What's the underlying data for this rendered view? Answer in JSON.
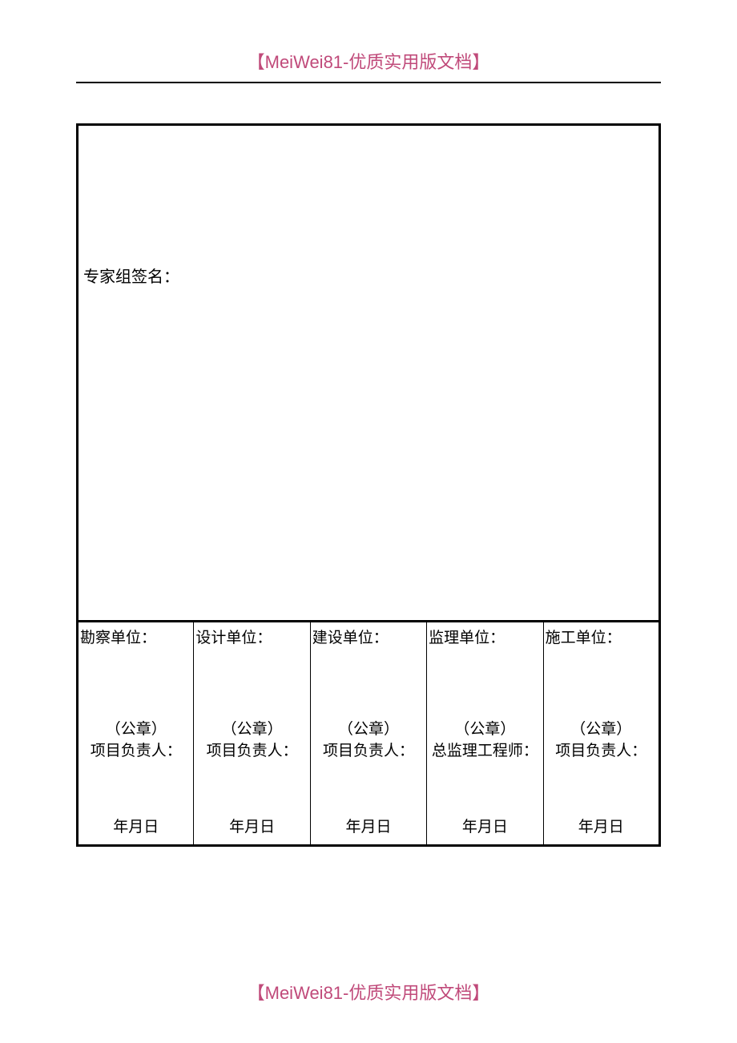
{
  "header": {
    "text": "【MeiWei81-优质实用版文档】",
    "color": "#c04a7a",
    "fontsize": 22
  },
  "footer": {
    "text": "【MeiWei81-优质实用版文档】",
    "color": "#c04a7a",
    "fontsize": 22
  },
  "table": {
    "type": "table",
    "border_color": "#000000",
    "outer_border_width": 3,
    "inner_border_width": 1,
    "background_color": "#ffffff",
    "expert_label": "专家组签名：",
    "columns": [
      {
        "unit": "勘察单位：",
        "seal": "（公章）",
        "responsible": "项目负责人：",
        "date": "年月日"
      },
      {
        "unit": "设计单位：",
        "seal": "（公章）",
        "responsible": "项目负责人：",
        "date": "年月日"
      },
      {
        "unit": "建设单位：",
        "seal": "（公章）",
        "responsible": "项目负责人：",
        "date": "年月日"
      },
      {
        "unit": "监理单位：",
        "seal": "（公章）",
        "responsible": "总监理工程师：",
        "date": "年月日"
      },
      {
        "unit": "施工单位：",
        "seal": "（公章）",
        "responsible": "项目负责人：",
        "date": "年月日"
      }
    ],
    "label_fontsize": 19,
    "text_color": "#000000"
  }
}
